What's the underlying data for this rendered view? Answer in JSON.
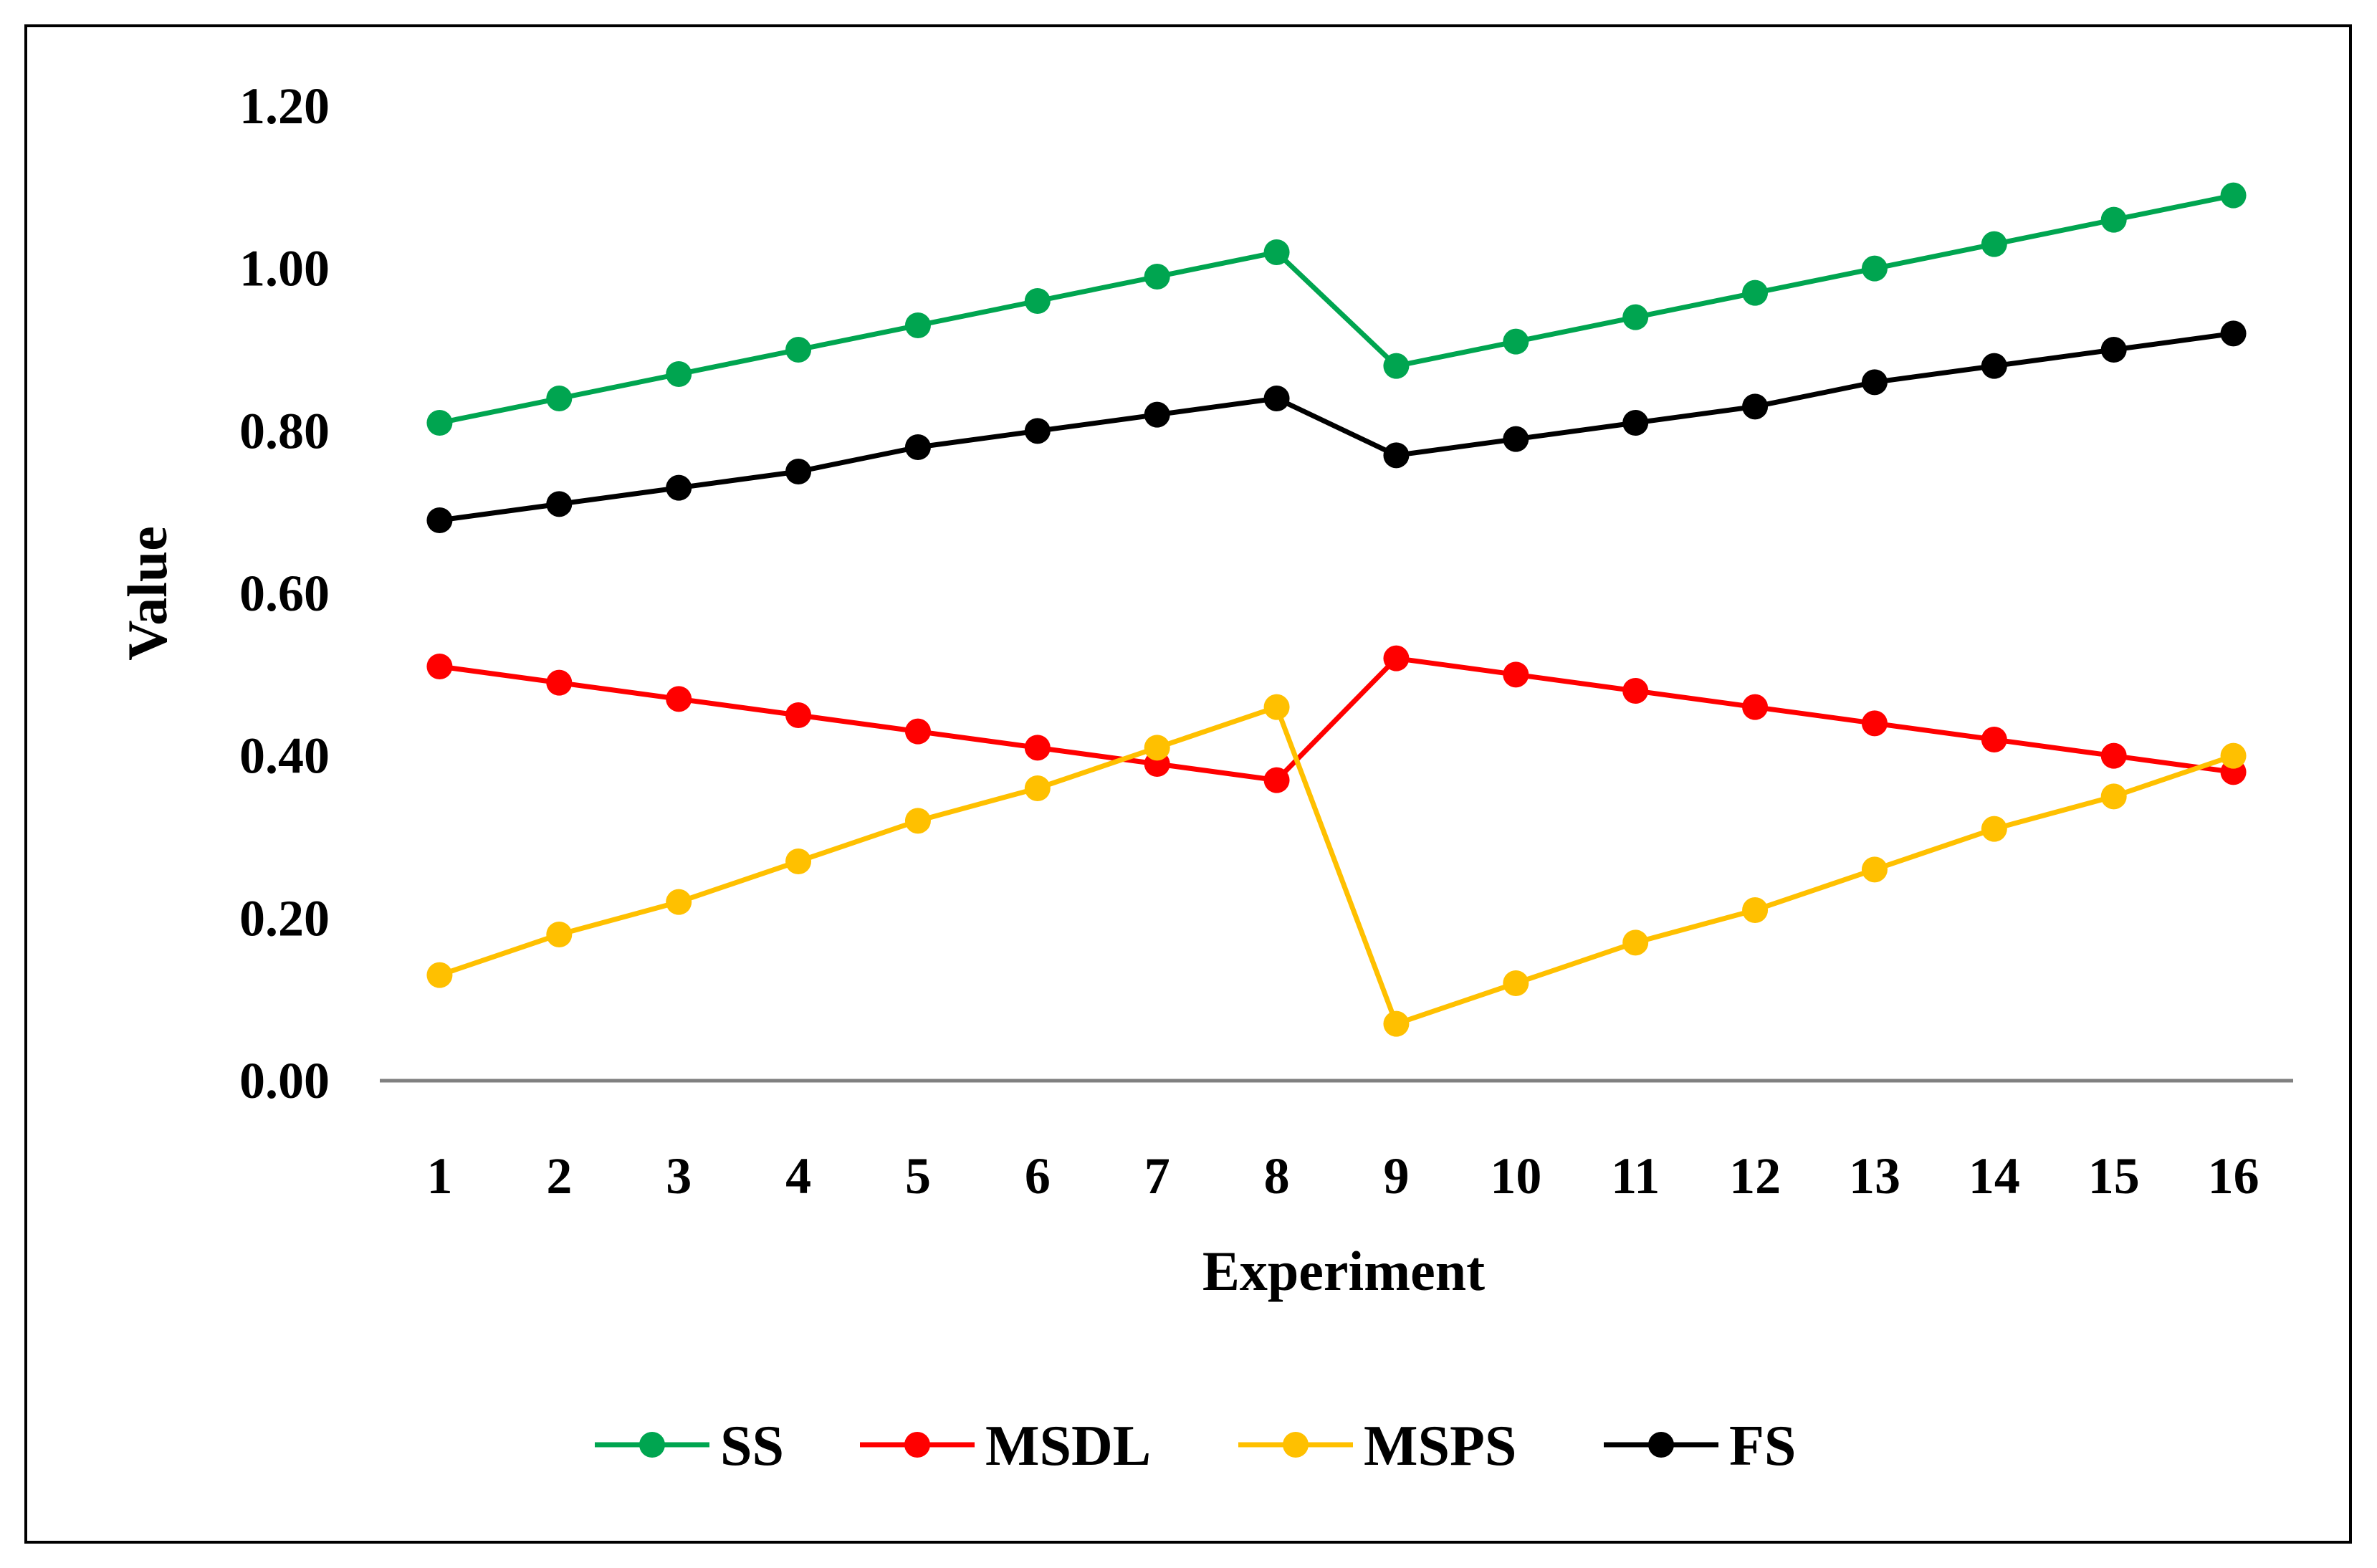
{
  "chart_data": {
    "type": "line",
    "title": "",
    "xlabel": "Experiment",
    "ylabel": "Value",
    "ylim": [
      0,
      1.2
    ],
    "yticks": [
      "0.00",
      "0.20",
      "0.40",
      "0.60",
      "0.80",
      "1.00",
      "1.20"
    ],
    "categories": [
      "1",
      "2",
      "3",
      "4",
      "5",
      "6",
      "7",
      "8",
      "9",
      "10",
      "11",
      "12",
      "13",
      "14",
      "15",
      "16"
    ],
    "legend_position": "bottom",
    "grid": false,
    "series": [
      {
        "name": "SS",
        "color": "#00a550",
        "values": [
          0.81,
          0.84,
          0.87,
          0.9,
          0.93,
          0.96,
          0.99,
          1.02,
          0.88,
          0.91,
          0.94,
          0.97,
          1.0,
          1.03,
          1.06,
          1.09
        ]
      },
      {
        "name": "MSDL",
        "color": "#ff0000",
        "values": [
          0.51,
          0.49,
          0.47,
          0.45,
          0.43,
          0.41,
          0.39,
          0.37,
          0.52,
          0.5,
          0.48,
          0.46,
          0.44,
          0.42,
          0.4,
          0.38
        ]
      },
      {
        "name": "MSPS",
        "color": "#ffc000",
        "values": [
          0.13,
          0.18,
          0.22,
          0.27,
          0.32,
          0.36,
          0.41,
          0.46,
          0.07,
          0.12,
          0.17,
          0.21,
          0.26,
          0.31,
          0.35,
          0.4
        ]
      },
      {
        "name": "FS",
        "color": "#000000",
        "values": [
          0.69,
          0.71,
          0.73,
          0.75,
          0.78,
          0.8,
          0.82,
          0.84,
          0.77,
          0.79,
          0.81,
          0.83,
          0.86,
          0.88,
          0.9,
          0.92
        ]
      }
    ]
  }
}
